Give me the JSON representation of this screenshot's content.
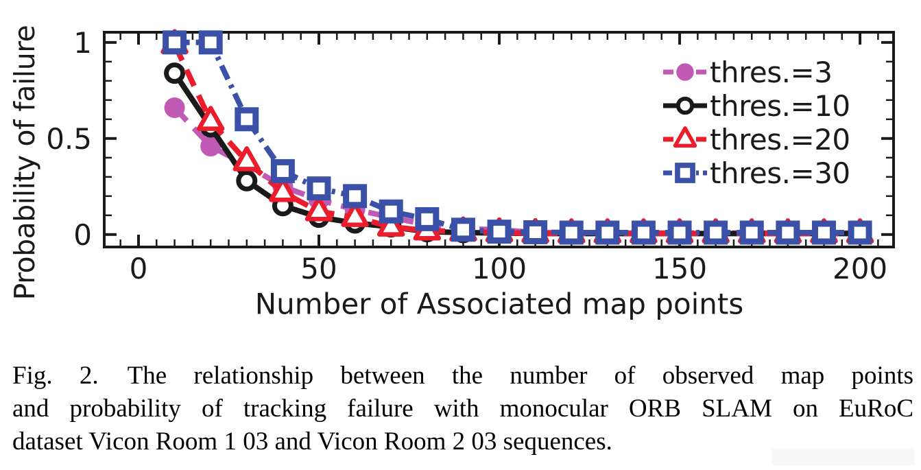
{
  "chart_data": {
    "type": "line",
    "title": "",
    "xlabel": "Number of Associated map points",
    "ylabel": "Probability of failure",
    "x": [
      10,
      20,
      30,
      40,
      50,
      60,
      70,
      80,
      90,
      100,
      110,
      120,
      130,
      140,
      150,
      160,
      170,
      180,
      190,
      200
    ],
    "series": [
      {
        "name": "thres.=3",
        "color": "#C05AB4",
        "line": "dashed",
        "marker": "filled-circle",
        "values": [
          0.66,
          0.46,
          0.36,
          0.25,
          0.18,
          0.13,
          0.09,
          0.05,
          0.03,
          0.025,
          0.01,
          0.01,
          0.008,
          0.008,
          0.008,
          0.008,
          0.008,
          0.008,
          0.008,
          0.008
        ]
      },
      {
        "name": "thres.=10",
        "color": "#1a1a1a",
        "line": "solid",
        "marker": "open-circle",
        "values": [
          0.84,
          0.56,
          0.28,
          0.15,
          0.09,
          0.06,
          0.04,
          0.015,
          0.01,
          0.008,
          0.005,
          0.005,
          0.005,
          0.005,
          0.005,
          0.005,
          0.005,
          0.005,
          0.005,
          0.005
        ]
      },
      {
        "name": "thres.=20",
        "color": "#EB1C2C",
        "line": "dashed",
        "marker": "open-triangle",
        "values": [
          0.99,
          0.59,
          0.38,
          0.22,
          0.12,
          0.09,
          0.04,
          0.02,
          0.015,
          0.01,
          0.006,
          0.005,
          0.005,
          0.005,
          0.005,
          0.005,
          0.005,
          0.005,
          0.005,
          0.005
        ]
      },
      {
        "name": "thres.=30",
        "color": "#3B51A8",
        "line": "dashdot",
        "marker": "open-square",
        "values": [
          1.0,
          1.0,
          0.6,
          0.33,
          0.24,
          0.2,
          0.12,
          0.08,
          0.025,
          0.015,
          0.012,
          0.01,
          0.01,
          0.01,
          0.01,
          0.01,
          0.01,
          0.01,
          0.01,
          0.01
        ]
      }
    ],
    "xlim": [
      -9.5,
      209.3
    ],
    "ylim": [
      -0.065,
      1.053
    ],
    "xticks": [
      0,
      50,
      100,
      150,
      200
    ],
    "xtick_labels": [
      "0",
      "50",
      "100",
      "150",
      "200"
    ],
    "yticks": [
      0,
      0.5,
      1
    ],
    "ytick_labels": [
      "0",
      "0.5",
      "1"
    ],
    "minor_x_step": 5,
    "minor_y_step": 0.1,
    "grid": false,
    "legend_position": "upper right",
    "axis_color": "#1a1a1a"
  },
  "caption": {
    "prefix": "Fig. 2.",
    "line1": "The relationship between the number of observed map points",
    "line2": "and probability of tracking failure with monocular ORB SLAM on EuRoC",
    "line3": "dataset Vicon Room 1 03 and Vicon Room 2 03 sequences."
  }
}
